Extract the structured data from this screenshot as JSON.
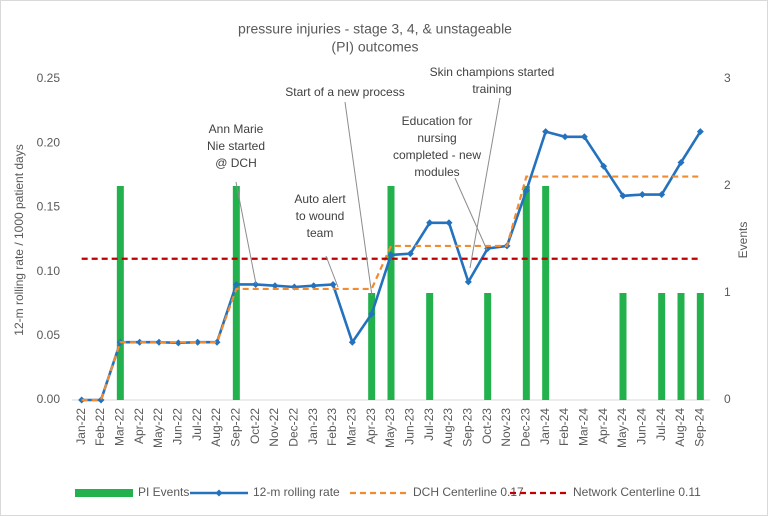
{
  "chart_data": {
    "type": "combo",
    "title": [
      "pressure injuries - stage 3, 4, & unstageable",
      "(PI) outcomes"
    ],
    "y_label": "12-m rolling rate / 1000 patient days",
    "y2_label": "Events",
    "categories": [
      "Jan-22",
      "Feb-22",
      "Mar-22",
      "Apr-22",
      "May-22",
      "Jun-22",
      "Jul-22",
      "Aug-22",
      "Sep-22",
      "Oct-22",
      "Nov-22",
      "Dec-22",
      "Jan-23",
      "Feb-23",
      "Mar-23",
      "Apr-23",
      "May-23",
      "Jun-23",
      "Jul-23",
      "Aug-23",
      "Sep-23",
      "Oct-23",
      "Nov-23",
      "Dec-23",
      "Jan-24",
      "Feb-24",
      "Mar-24",
      "Apr-24",
      "May-24",
      "Jun-24",
      "Jul-24",
      "Aug-24",
      "Sep-24"
    ],
    "ylim": [
      0,
      0.25
    ],
    "yticks": [
      {
        "value": 0,
        "label": "0.00"
      },
      {
        "value": 0.05,
        "label": "0.05"
      },
      {
        "value": 0.1,
        "label": "0.10"
      },
      {
        "value": 0.15,
        "label": "0.15"
      },
      {
        "value": 0.2,
        "label": "0.20"
      },
      {
        "value": 0.25,
        "label": "0.25"
      }
    ],
    "y2lim": [
      0,
      3
    ],
    "y2ticks": [
      0,
      1,
      2,
      3
    ],
    "series": [
      {
        "name": "PI Events",
        "type": "bar",
        "axis": "y2",
        "color": "#22b14c",
        "values": [
          0,
          0,
          2,
          0,
          0,
          0,
          0,
          0,
          2,
          0,
          0,
          0,
          0,
          0,
          0,
          1,
          2,
          0,
          1,
          0,
          0,
          1,
          0,
          2,
          2,
          0,
          0,
          0,
          1,
          0,
          1,
          1,
          1
        ]
      },
      {
        "name": "12-m rolling rate",
        "type": "line",
        "color": "#2472be",
        "marker": true,
        "values": [
          0,
          0,
          0.045,
          0.045,
          0.045,
          0.0445,
          0.045,
          0.045,
          0.09,
          0.09,
          0.089,
          0.088,
          0.089,
          0.09,
          0.045,
          0.067,
          0.113,
          0.114,
          0.138,
          0.138,
          0.092,
          0.118,
          0.12,
          0.163,
          0.209,
          0.205,
          0.205,
          0.182,
          0.159,
          0.16,
          0.16,
          0.185,
          0.209
        ]
      },
      {
        "name": "DCH Centerline 0.17",
        "type": "line",
        "color": "#f28b30",
        "dash": true,
        "values": [
          0,
          0,
          0.045,
          0.045,
          0.045,
          0.045,
          0.045,
          0.045,
          0.0865,
          0.0865,
          0.0865,
          0.0865,
          0.0865,
          0.0865,
          0.0865,
          0.0865,
          0.12,
          0.12,
          0.12,
          0.12,
          0.12,
          0.12,
          0.12,
          0.174,
          0.174,
          0.174,
          0.174,
          0.174,
          0.174,
          0.174,
          0.174,
          0.174,
          0.174
        ]
      },
      {
        "name": "Network Centerline 0.11",
        "type": "line",
        "color": "#c00000",
        "dash": true,
        "values": [
          0.11,
          0.11,
          0.11,
          0.11,
          0.11,
          0.11,
          0.11,
          0.11,
          0.11,
          0.11,
          0.11,
          0.11,
          0.11,
          0.11,
          0.11,
          0.11,
          0.11,
          0.11,
          0.11,
          0.11,
          0.11,
          0.11,
          0.11,
          0.11,
          0.11,
          0.11,
          0.11,
          0.11,
          0.11,
          0.11,
          0.11,
          0.11,
          0.11
        ]
      }
    ],
    "annotations": [
      {
        "lines": [
          "Ann Marie",
          "Nie started",
          "@ DCH"
        ]
      },
      {
        "lines": [
          "Auto alert",
          "to wound",
          "team"
        ]
      },
      {
        "lines": [
          "Start of a new process"
        ]
      },
      {
        "lines": [
          "Education for",
          "nursing",
          "completed - new",
          "modules"
        ]
      },
      {
        "lines": [
          "Skin champions started",
          "training"
        ]
      }
    ]
  }
}
